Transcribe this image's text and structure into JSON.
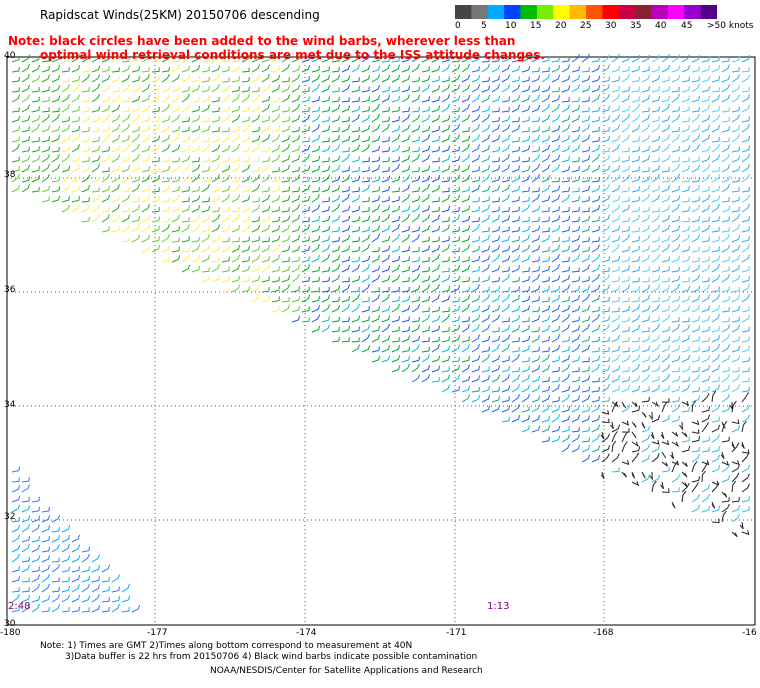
{
  "title": "Rapidscat Winds(25KM) 20150706 descending",
  "note_line1": "Note: black circles have been added to the wind barbs, wherever less than",
  "note_line2": "optimal wind retrieval conditions are met due to the ISS attitude changes.",
  "colorbar": {
    "labels": [
      "0",
      "5",
      "10",
      "15",
      "20",
      "25",
      "30",
      "35",
      "40",
      "45",
      ">50 knots"
    ],
    "colors": [
      "#454545",
      "#777777",
      "#00aaff",
      "#0044ff",
      "#00bb00",
      "#77ee00",
      "#ffff00",
      "#ffbb00",
      "#ff5500",
      "#ff0000",
      "#cc0044",
      "#882233",
      "#bb00bb",
      "#ff00ff",
      "#9900cc",
      "#550088"
    ]
  },
  "lat_labels": [
    "40",
    "38",
    "36",
    "34",
    "32",
    "30"
  ],
  "lon_labels": [
    "-180",
    "-177",
    "-174",
    "-171",
    "-168",
    "-16"
  ],
  "time_labels": [
    "2:48",
    "1:13"
  ],
  "footnote1": "Note: 1) Times are GMT 2)Times along bottom correspond to measurement at 40N",
  "footnote2": "3)Data buffer is 22 hrs from 20150706 4) Black wind barbs indicate possible contamination",
  "credit": "NOAA/NESDIS/Center for Satellite Applications and Research"
}
